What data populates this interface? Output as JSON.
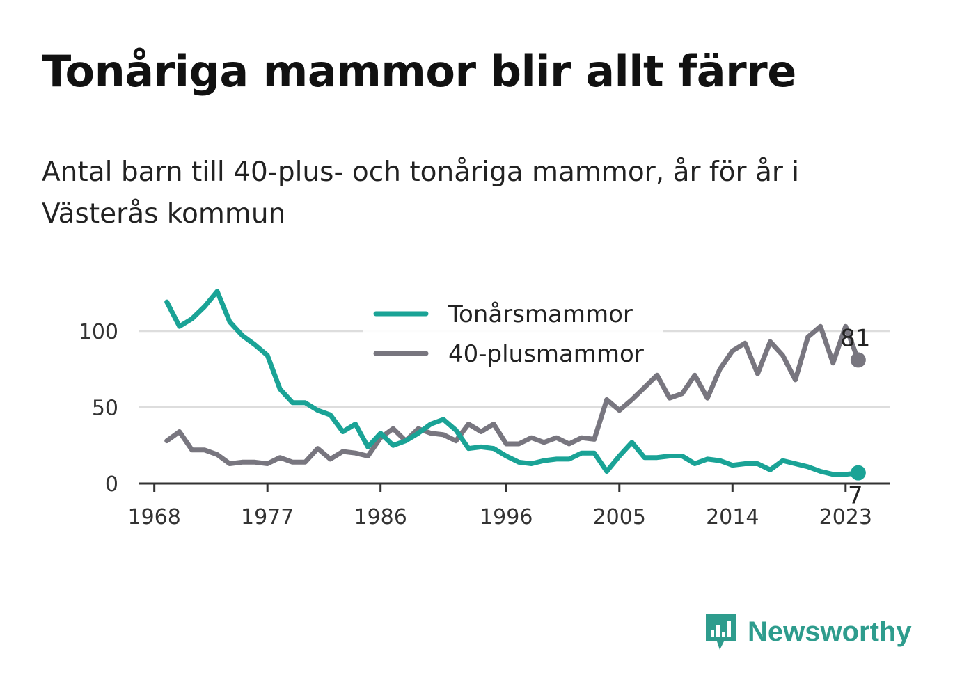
{
  "header": {
    "title": "Tonåriga mammor blir allt färre",
    "subtitle": "Antal barn till 40-plus- och tonåriga mammor, år för år i Västerås kommun"
  },
  "brand": {
    "name": "Newsworthy"
  },
  "colors": {
    "teen": "#1aa396",
    "plus40": "#78767f",
    "grid": "#dddddd",
    "axis": "#333333"
  },
  "chart_data": {
    "type": "line",
    "title": "Tonåriga mammor blir allt färre",
    "subtitle": "Antal barn till 40-plus- och tonåriga mammor, år för år i Västerås kommun",
    "xlabel": "",
    "ylabel": "",
    "x_ticks": [
      1968,
      1977,
      1986,
      1996,
      2005,
      2014,
      2023
    ],
    "y_ticks": [
      0,
      50,
      100
    ],
    "xlim": [
      1966.8,
      2026.5
    ],
    "ylim": [
      0,
      130
    ],
    "grid": true,
    "legend_position": "top-center",
    "x": [
      1969,
      1970,
      1971,
      1972,
      1973,
      1974,
      1975,
      1976,
      1977,
      1978,
      1979,
      1980,
      1981,
      1982,
      1983,
      1984,
      1985,
      1986,
      1987,
      1988,
      1989,
      1990,
      1991,
      1992,
      1993,
      1994,
      1995,
      1996,
      1997,
      1998,
      1999,
      2000,
      2001,
      2002,
      2003,
      2004,
      2005,
      2006,
      2007,
      2008,
      2009,
      2010,
      2011,
      2012,
      2013,
      2014,
      2015,
      2016,
      2017,
      2018,
      2019,
      2020,
      2021,
      2022,
      2023,
      2024
    ],
    "series": [
      {
        "name": "Tonårsmammor",
        "color": "#1aa396",
        "end_label": "7",
        "values": [
          119,
          103,
          108,
          116,
          126,
          106,
          97,
          91,
          84,
          62,
          53,
          53,
          48,
          45,
          34,
          39,
          24,
          33,
          25,
          28,
          33,
          39,
          42,
          35,
          23,
          24,
          23,
          18,
          14,
          13,
          15,
          16,
          16,
          20,
          20,
          8,
          18,
          27,
          17,
          17,
          18,
          18,
          13,
          16,
          15,
          12,
          13,
          13,
          9,
          15,
          13,
          11,
          8,
          6,
          6,
          7
        ]
      },
      {
        "name": "40-plusmammor",
        "color": "#78767f",
        "end_label": "81",
        "values": [
          28,
          34,
          22,
          22,
          19,
          13,
          14,
          14,
          13,
          17,
          14,
          14,
          23,
          16,
          21,
          20,
          18,
          30,
          36,
          28,
          36,
          33,
          32,
          28,
          39,
          34,
          39,
          26,
          26,
          30,
          27,
          30,
          26,
          30,
          29,
          55,
          48,
          55,
          63,
          71,
          56,
          59,
          71,
          56,
          75,
          87,
          92,
          72,
          93,
          84,
          68,
          96,
          103,
          79,
          103,
          81
        ]
      }
    ]
  }
}
